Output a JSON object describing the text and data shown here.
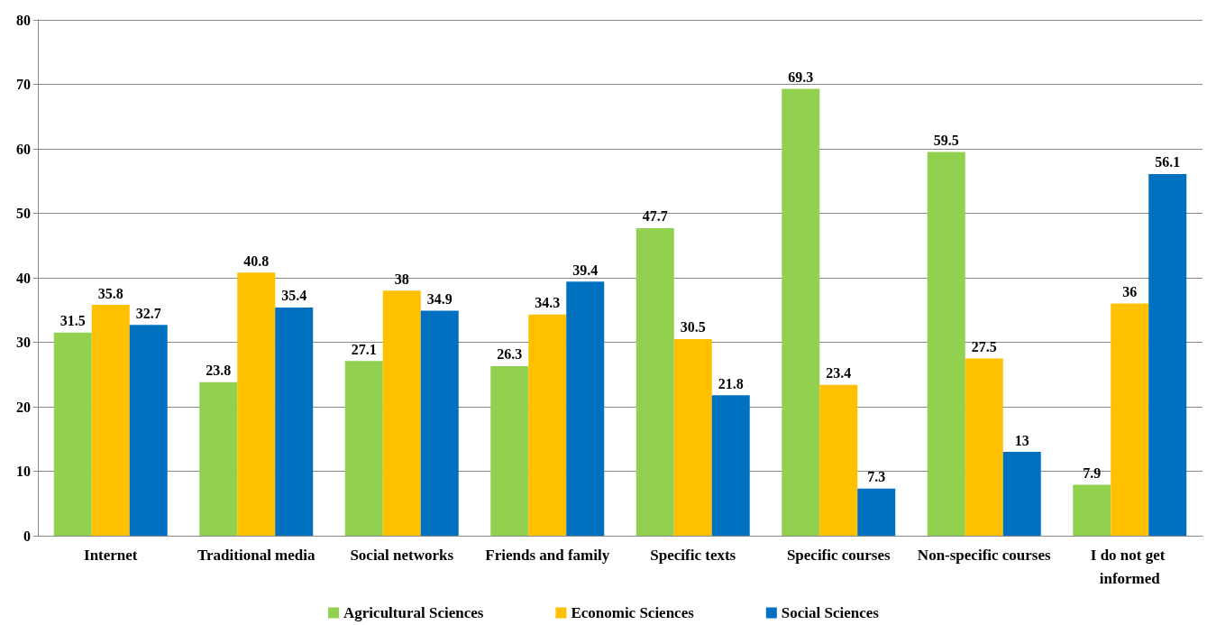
{
  "chart_data": {
    "type": "bar",
    "categories": [
      "Internet",
      "Traditional media",
      "Social networks",
      "Friends and family",
      "Specific texts",
      "Specific courses",
      "Non-specific courses",
      "I do not get informed"
    ],
    "series": [
      {
        "name": "Agricultural Sciences",
        "color": "#92d050",
        "values": [
          31.5,
          23.8,
          27.1,
          26.3,
          47.7,
          69.3,
          59.5,
          7.9
        ]
      },
      {
        "name": "Economic Sciences",
        "color": "#ffc000",
        "values": [
          35.8,
          40.8,
          38,
          34.3,
          30.5,
          23.4,
          27.5,
          36
        ]
      },
      {
        "name": "Social Sciences",
        "color": "#0070c0",
        "values": [
          32.7,
          35.4,
          34.9,
          39.4,
          21.8,
          7.3,
          13,
          56.1
        ]
      }
    ],
    "ylim": [
      0,
      80
    ],
    "yticks": [
      0,
      10,
      20,
      30,
      40,
      50,
      60,
      70,
      80
    ],
    "grid": "y",
    "legend": "bottom",
    "data_labels": true
  }
}
